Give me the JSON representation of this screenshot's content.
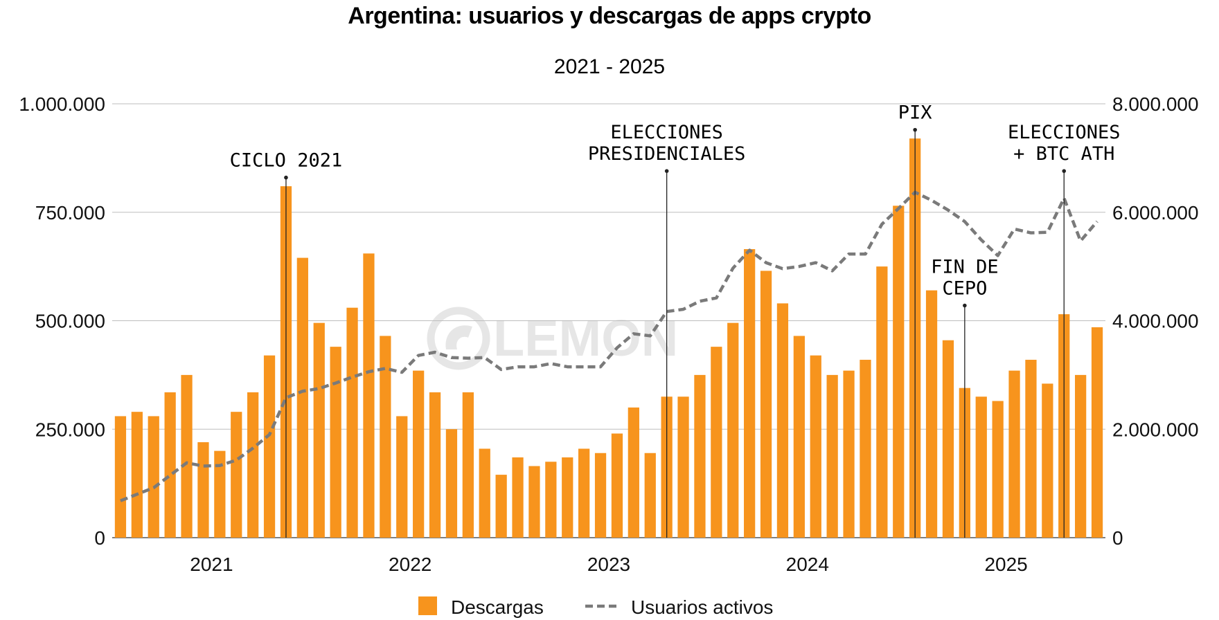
{
  "chart_data": {
    "type": "bar+line",
    "title": "Argentina: usuarios y descargas de apps crypto",
    "subtitle": "2021 - 2025",
    "watermark": "LEMON",
    "colors": {
      "bars": "#f7941d",
      "line": "#7a7a7a",
      "grid": "#bdbdbd",
      "annotation_line": "#222222"
    },
    "left_axis": {
      "min": 0,
      "max": 1000000,
      "ticks": [
        0,
        250000,
        500000,
        750000,
        1000000
      ],
      "tick_labels": [
        "0",
        "250.000",
        "500.000",
        "750.000",
        "1.000.000"
      ]
    },
    "right_axis": {
      "min": 0,
      "max": 8000000,
      "ticks": [
        0,
        2000000,
        4000000,
        6000000,
        8000000
      ],
      "tick_labels": [
        "0",
        "2.000.000",
        "4.000.000",
        "6.000.000",
        "8.000.000"
      ]
    },
    "x_year_labels": [
      {
        "label": "2021",
        "index": 6
      },
      {
        "label": "2022",
        "index": 18
      },
      {
        "label": "2023",
        "index": 30
      },
      {
        "label": "2024",
        "index": 42
      },
      {
        "label": "2025",
        "index": 54
      }
    ],
    "series": [
      {
        "name": "Descargas",
        "axis": "left",
        "kind": "bar",
        "values": [
          280000,
          290000,
          280000,
          335000,
          375000,
          220000,
          200000,
          290000,
          335000,
          420000,
          810000,
          645000,
          495000,
          440000,
          530000,
          655000,
          465000,
          280000,
          385000,
          335000,
          250000,
          335000,
          205000,
          145000,
          185000,
          165000,
          175000,
          185000,
          205000,
          195000,
          240000,
          300000,
          195000,
          325000,
          325000,
          375000,
          440000,
          495000,
          665000,
          615000,
          540000,
          465000,
          420000,
          375000,
          385000,
          410000,
          625000,
          765000,
          920000,
          570000,
          455000,
          345000,
          325000,
          315000,
          385000,
          410000,
          355000,
          515000,
          375000,
          485000
        ]
      },
      {
        "name": "Usuarios activos",
        "axis": "right",
        "kind": "dashed-line",
        "values": [
          680000,
          800000,
          920000,
          1150000,
          1380000,
          1320000,
          1330000,
          1430000,
          1650000,
          1900000,
          2580000,
          2700000,
          2750000,
          2850000,
          2960000,
          3060000,
          3120000,
          3050000,
          3360000,
          3420000,
          3320000,
          3310000,
          3320000,
          3100000,
          3150000,
          3150000,
          3210000,
          3150000,
          3150000,
          3150000,
          3500000,
          3760000,
          3720000,
          4170000,
          4210000,
          4360000,
          4420000,
          4970000,
          5300000,
          5070000,
          4960000,
          5000000,
          5070000,
          4920000,
          5230000,
          5230000,
          5780000,
          6070000,
          6370000,
          6220000,
          6040000,
          5830000,
          5490000,
          5200000,
          5690000,
          5620000,
          5630000,
          6260000,
          5470000,
          5830000
        ]
      }
    ],
    "annotations": [
      {
        "lines": [
          "CICLO 2021"
        ],
        "index": 10,
        "value": 830000
      },
      {
        "lines": [
          "ELECCIONES",
          "PRESIDENCIALES"
        ],
        "index": 33,
        "value": 845000
      },
      {
        "lines": [
          "PIX"
        ],
        "index": 48,
        "value": 940000
      },
      {
        "lines": [
          "FIN DE",
          "CEPO"
        ],
        "index": 51,
        "value": 535000
      },
      {
        "lines": [
          "ELECCIONES",
          "+ BTC ATH"
        ],
        "index": 57,
        "value": 845000
      }
    ],
    "legend": [
      {
        "label": "Descargas",
        "kind": "bar"
      },
      {
        "label": "Usuarios activos",
        "kind": "dashed-line"
      }
    ]
  }
}
